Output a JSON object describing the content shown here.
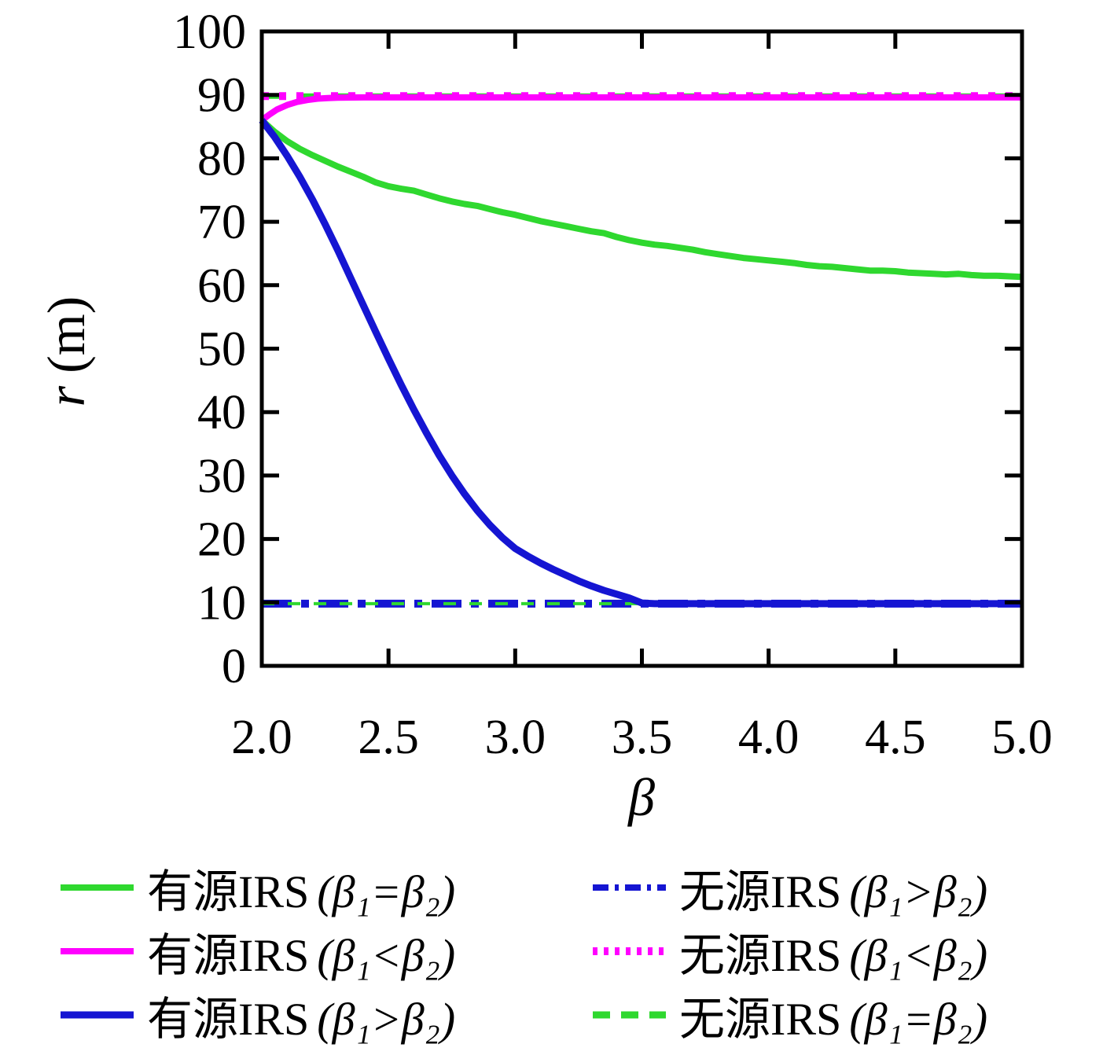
{
  "labels": {
    "x_italic": "β",
    "y_italic": "r",
    "y_unit": "(m)"
  },
  "legend": {
    "rows": [
      {
        "name": "有源IRS",
        "cond": "(β₁=β₂)",
        "series": "active_eq"
      },
      {
        "name": "有源IRS",
        "cond": "(β₁<β₂)",
        "series": "active_lt"
      },
      {
        "name": "有源IRS",
        "cond": "(β₁>β₂)",
        "series": "active_gt"
      },
      {
        "name": "无源IRS",
        "cond": "(β₁>β₂)",
        "series": "passive_gt"
      },
      {
        "name": "无源IRS",
        "cond": "(β₁<β₂)",
        "series": "passive_lt"
      },
      {
        "name": "无源IRS",
        "cond": "(β₁=β₂)",
        "series": "passive_eq"
      }
    ]
  },
  "chart_data": {
    "type": "line",
    "title": "",
    "xlabel": "β",
    "ylabel": "r (m)",
    "xlim": [
      2.0,
      5.0
    ],
    "ylim": [
      0,
      100
    ],
    "grid": false,
    "legend_position": "below",
    "x_ticks": [
      2.0,
      2.5,
      3.0,
      3.5,
      4.0,
      4.5,
      5.0
    ],
    "x_tick_labels": [
      "2.0",
      "2.5",
      "3.0",
      "3.5",
      "4.0",
      "4.5",
      "5.0"
    ],
    "y_ticks": [
      0,
      10,
      20,
      30,
      40,
      50,
      60,
      70,
      80,
      90,
      100
    ],
    "y_tick_labels": [
      "0",
      "10",
      "20",
      "30",
      "40",
      "50",
      "60",
      "70",
      "80",
      "90",
      "100"
    ],
    "series": [
      {
        "id": "passive_gt",
        "label": "无源IRS (β₁>β₂)",
        "color": "#1515d2",
        "style": "dashdot",
        "width": 10,
        "segments": [
          {
            "points": [
              [
                2.0,
                9.8
              ],
              [
                5.0,
                9.8
              ]
            ],
            "width": 10,
            "dash": "38 12 10 12"
          }
        ]
      },
      {
        "id": "passive_eq",
        "label": "无源IRS (β₁=β₂)",
        "color": "#2fd82f",
        "style": "dashed",
        "width": 7,
        "segments": [
          {
            "points": [
              [
                2.0,
                89.8
              ],
              [
                5.0,
                89.8
              ]
            ],
            "width": 7,
            "dash": "27 17"
          },
          {
            "points": [
              [
                2.0,
                9.8
              ],
              [
                5.0,
                9.8
              ]
            ],
            "width": 4,
            "dash": "16 17"
          }
        ]
      },
      {
        "id": "passive_lt",
        "label": "无源IRS (β₁<β₂)",
        "color": "#ff00ff",
        "style": "dotted",
        "width": 10,
        "segments": [
          {
            "points": [
              [
                2.0,
                89.8
              ],
              [
                5.0,
                89.8
              ]
            ],
            "width": 10,
            "dash": "9 13"
          }
        ]
      },
      {
        "id": "active_eq",
        "label": "有源IRS (β₁=β₂)",
        "color": "#2fd82f",
        "style": "solid",
        "width": 8,
        "segments": [
          {
            "points": [
              [
                2.0,
                86.0
              ],
              [
                2.05,
                84.2
              ],
              [
                2.1,
                82.7
              ],
              [
                2.15,
                81.5
              ],
              [
                2.2,
                80.5
              ],
              [
                2.25,
                79.6
              ],
              [
                2.3,
                78.7
              ],
              [
                2.35,
                77.9
              ],
              [
                2.4,
                77.1
              ],
              [
                2.45,
                76.2
              ],
              [
                2.5,
                75.6
              ],
              [
                2.55,
                75.2
              ],
              [
                2.6,
                74.9
              ],
              [
                2.65,
                74.3
              ],
              [
                2.7,
                73.7
              ],
              [
                2.75,
                73.2
              ],
              [
                2.8,
                72.8
              ],
              [
                2.85,
                72.5
              ],
              [
                2.9,
                72.0
              ],
              [
                2.95,
                71.5
              ],
              [
                3.0,
                71.1
              ],
              [
                3.05,
                70.6
              ],
              [
                3.1,
                70.1
              ],
              [
                3.15,
                69.7
              ],
              [
                3.2,
                69.3
              ],
              [
                3.25,
                68.9
              ],
              [
                3.3,
                68.5
              ],
              [
                3.35,
                68.2
              ],
              [
                3.4,
                67.6
              ],
              [
                3.45,
                67.1
              ],
              [
                3.5,
                66.7
              ],
              [
                3.55,
                66.4
              ],
              [
                3.6,
                66.2
              ],
              [
                3.65,
                65.9
              ],
              [
                3.7,
                65.6
              ],
              [
                3.75,
                65.2
              ],
              [
                3.8,
                64.9
              ],
              [
                3.85,
                64.6
              ],
              [
                3.9,
                64.3
              ],
              [
                3.95,
                64.1
              ],
              [
                4.0,
                63.9
              ],
              [
                4.05,
                63.7
              ],
              [
                4.1,
                63.5
              ],
              [
                4.15,
                63.2
              ],
              [
                4.2,
                63.0
              ],
              [
                4.25,
                62.9
              ],
              [
                4.3,
                62.7
              ],
              [
                4.35,
                62.5
              ],
              [
                4.4,
                62.3
              ],
              [
                4.45,
                62.3
              ],
              [
                4.5,
                62.2
              ],
              [
                4.55,
                62.0
              ],
              [
                4.6,
                61.9
              ],
              [
                4.65,
                61.8
              ],
              [
                4.7,
                61.7
              ],
              [
                4.75,
                61.8
              ],
              [
                4.8,
                61.6
              ],
              [
                4.85,
                61.5
              ],
              [
                4.9,
                61.5
              ],
              [
                4.95,
                61.4
              ],
              [
                5.0,
                61.3
              ]
            ]
          }
        ]
      },
      {
        "id": "active_lt",
        "label": "有源IRS (β₁<β₂)",
        "color": "#ff00ff",
        "style": "solid",
        "width": 8,
        "segments": [
          {
            "points": [
              [
                2.0,
                86.0
              ],
              [
                2.03,
                86.9
              ],
              [
                2.06,
                87.7
              ],
              [
                2.1,
                88.4
              ],
              [
                2.14,
                88.9
              ],
              [
                2.18,
                89.2
              ],
              [
                2.22,
                89.4
              ],
              [
                2.26,
                89.5
              ],
              [
                2.3,
                89.55
              ],
              [
                2.4,
                89.6
              ],
              [
                2.6,
                89.6
              ],
              [
                3.0,
                89.6
              ],
              [
                3.5,
                89.6
              ],
              [
                4.0,
                89.6
              ],
              [
                4.5,
                89.6
              ],
              [
                5.0,
                89.6
              ]
            ]
          }
        ]
      },
      {
        "id": "active_gt",
        "label": "有源IRS (β₁>β₂)",
        "color": "#1515d2",
        "style": "solid",
        "width": 9,
        "segments": [
          {
            "points": [
              [
                2.0,
                86.0
              ],
              [
                2.05,
                83.4
              ],
              [
                2.1,
                80.4
              ],
              [
                2.15,
                77.1
              ],
              [
                2.2,
                73.5
              ],
              [
                2.25,
                69.6
              ],
              [
                2.3,
                65.5
              ],
              [
                2.35,
                61.2
              ],
              [
                2.4,
                56.9
              ],
              [
                2.45,
                52.6
              ],
              [
                2.5,
                48.4
              ],
              [
                2.55,
                44.3
              ],
              [
                2.6,
                40.4
              ],
              [
                2.65,
                36.7
              ],
              [
                2.7,
                33.2
              ],
              [
                2.75,
                30.0
              ],
              [
                2.8,
                27.1
              ],
              [
                2.85,
                24.5
              ],
              [
                2.9,
                22.2
              ],
              [
                2.95,
                20.2
              ],
              [
                3.0,
                18.5
              ],
              [
                3.05,
                17.3
              ],
              [
                3.1,
                16.2
              ],
              [
                3.15,
                15.2
              ],
              [
                3.2,
                14.3
              ],
              [
                3.25,
                13.4
              ],
              [
                3.3,
                12.6
              ],
              [
                3.35,
                11.9
              ],
              [
                3.4,
                11.3
              ],
              [
                3.45,
                10.7
              ],
              [
                3.5,
                9.9
              ],
              [
                3.55,
                9.8
              ],
              [
                3.6,
                9.8
              ],
              [
                4.0,
                9.8
              ],
              [
                4.5,
                9.8
              ],
              [
                5.0,
                9.8
              ]
            ]
          }
        ]
      }
    ]
  }
}
